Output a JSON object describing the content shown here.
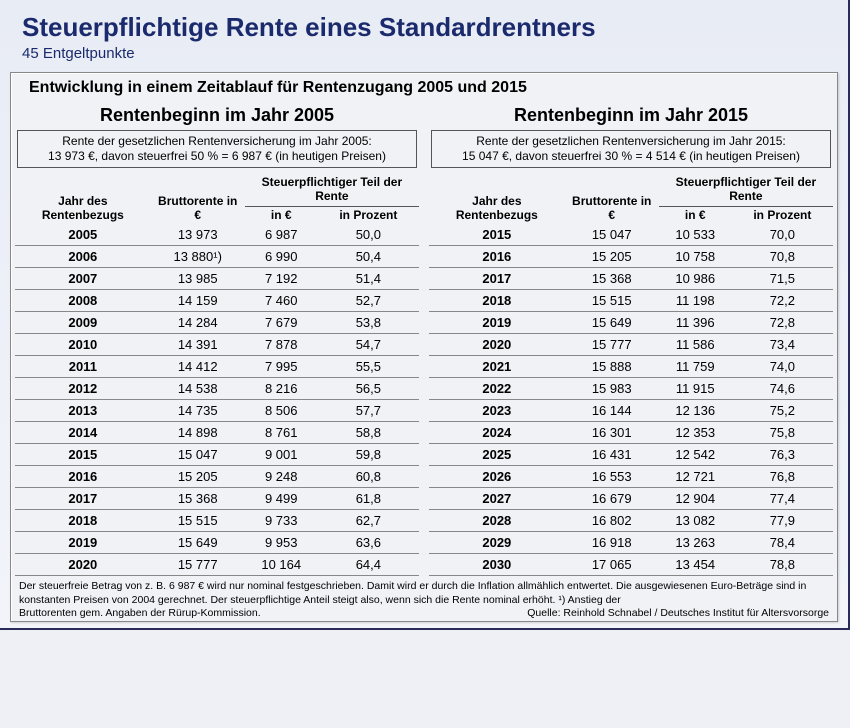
{
  "title": "Steuerpflichtige Rente eines Standardrentners",
  "subtitle": "45 Entgeltpunkte",
  "panel_title": "Entwicklung in einem Zeitablauf für Rentenzugang 2005 und 2015",
  "left": {
    "title": "Rentenbeginn im Jahr 2005",
    "info1": "Rente der gesetzlichen Rentenversicherung im Jahr 2005:",
    "info2": "13 973 €, davon steuerfrei 50 % = 6 987 € (in heutigen Preisen)",
    "head_year": "Jahr des Rentenbezugs",
    "head_brutto": "Bruttorente in €",
    "head_group": "Steuerpflichtiger Teil der Rente",
    "head_eur": "in €",
    "head_pct": "in Prozent",
    "rows": [
      {
        "y": "2005",
        "b": "13 973",
        "e": "6 987",
        "p": "50,0"
      },
      {
        "y": "2006",
        "b": "13 880¹)",
        "e": "6 990",
        "p": "50,4"
      },
      {
        "y": "2007",
        "b": "13 985",
        "e": "7 192",
        "p": "51,4"
      },
      {
        "y": "2008",
        "b": "14 159",
        "e": "7 460",
        "p": "52,7"
      },
      {
        "y": "2009",
        "b": "14 284",
        "e": "7 679",
        "p": "53,8"
      },
      {
        "y": "2010",
        "b": "14 391",
        "e": "7 878",
        "p": "54,7"
      },
      {
        "y": "2011",
        "b": "14 412",
        "e": "7 995",
        "p": "55,5"
      },
      {
        "y": "2012",
        "b": "14 538",
        "e": "8 216",
        "p": "56,5"
      },
      {
        "y": "2013",
        "b": "14 735",
        "e": "8 506",
        "p": "57,7"
      },
      {
        "y": "2014",
        "b": "14 898",
        "e": "8 761",
        "p": "58,8"
      },
      {
        "y": "2015",
        "b": "15 047",
        "e": "9 001",
        "p": "59,8"
      },
      {
        "y": "2016",
        "b": "15 205",
        "e": "9 248",
        "p": "60,8"
      },
      {
        "y": "2017",
        "b": "15 368",
        "e": "9 499",
        "p": "61,8"
      },
      {
        "y": "2018",
        "b": "15 515",
        "e": "9 733",
        "p": "62,7"
      },
      {
        "y": "2019",
        "b": "15 649",
        "e": "9 953",
        "p": "63,6"
      },
      {
        "y": "2020",
        "b": "15 777",
        "e": "10 164",
        "p": "64,4"
      }
    ]
  },
  "right": {
    "title": "Rentenbeginn im Jahr 2015",
    "info1": "Rente der gesetzlichen Rentenversicherung im Jahr 2015:",
    "info2": "15 047 €, davon steuerfrei 30 % = 4 514 € (in heutigen Preisen)",
    "head_year": "Jahr des Rentenbezugs",
    "head_brutto": "Bruttorente in €",
    "head_group": "Steuerpflichtiger Teil der Rente",
    "head_eur": "in €",
    "head_pct": "in Prozent",
    "rows": [
      {
        "y": "2015",
        "b": "15 047",
        "e": "10 533",
        "p": "70,0"
      },
      {
        "y": "2016",
        "b": "15 205",
        "e": "10 758",
        "p": "70,8"
      },
      {
        "y": "2017",
        "b": "15 368",
        "e": "10 986",
        "p": "71,5"
      },
      {
        "y": "2018",
        "b": "15 515",
        "e": "11 198",
        "p": "72,2"
      },
      {
        "y": "2019",
        "b": "15 649",
        "e": "11 396",
        "p": "72,8"
      },
      {
        "y": "2020",
        "b": "15 777",
        "e": "11 586",
        "p": "73,4"
      },
      {
        "y": "2021",
        "b": "15 888",
        "e": "11 759",
        "p": "74,0"
      },
      {
        "y": "2022",
        "b": "15 983",
        "e": "11 915",
        "p": "74,6"
      },
      {
        "y": "2023",
        "b": "16 144",
        "e": "12 136",
        "p": "75,2"
      },
      {
        "y": "2024",
        "b": "16 301",
        "e": "12 353",
        "p": "75,8"
      },
      {
        "y": "2025",
        "b": "16 431",
        "e": "12 542",
        "p": "76,3"
      },
      {
        "y": "2026",
        "b": "16 553",
        "e": "12 721",
        "p": "76,8"
      },
      {
        "y": "2027",
        "b": "16 679",
        "e": "12 904",
        "p": "77,4"
      },
      {
        "y": "2028",
        "b": "16 802",
        "e": "13 082",
        "p": "77,9"
      },
      {
        "y": "2029",
        "b": "16 918",
        "e": "13 263",
        "p": "78,4"
      },
      {
        "y": "2030",
        "b": "17 065",
        "e": "13 454",
        "p": "78,8"
      }
    ]
  },
  "footnote": "Der steuerfreie Betrag von z. B. 6 987 € wird nur nominal festgeschrieben. Damit wird er durch die Inflation allmählich entwertet. Die ausgewiesenen Euro-Beträge sind in konstanten Preisen von 2004 gerechnet. Der steuerpflichtige Anteil steigt also, wenn sich die Rente nominal erhöht. ¹) Anstieg der",
  "source_left": "Bruttorenten gem. Angaben der Rürup-Kommission.",
  "source_right": "Quelle: Reinhold Schnabel / Deutsches Institut für Altersvorsorge"
}
